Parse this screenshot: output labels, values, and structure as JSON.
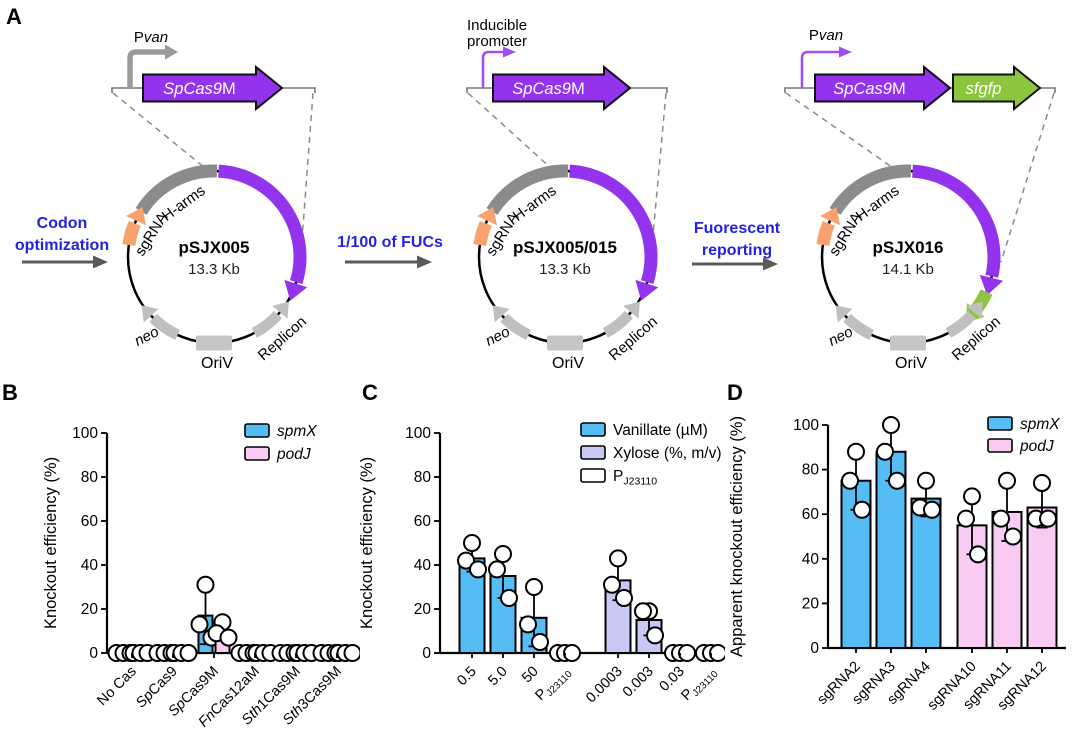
{
  "panel_labels": [
    "A",
    "B",
    "C",
    "D"
  ],
  "colors": {
    "cas_purple": "#9333EE",
    "promoter_purple": "#A44DF2",
    "gfp_green": "#8CC63E",
    "sgrna_orange": "#F8A26F",
    "harms_gray": "#8B8B8B",
    "feature_gray": "#BFBFBF",
    "promoter_gray": "#9A9A9A",
    "transition_blue": "#2222E0",
    "bar_blue": "#55BDF3",
    "bar_pink": "#F9CBF3",
    "bar_lavender": "#C9C7F3",
    "bar_white": "#FFFFFF"
  },
  "panel_a": {
    "transitions": [
      {
        "lines": [
          "Codon",
          "optimization"
        ]
      },
      {
        "lines": [
          "1/100 of FUCs"
        ]
      },
      {
        "lines": [
          "Fuorescent",
          "reporting"
        ]
      }
    ],
    "ring_labels": {
      "sgrna": "sgRNA",
      "h_arms": "H-arms",
      "neo": "neo",
      "oriv": "OriV",
      "replicon": "Replicon"
    },
    "plasmids": [
      {
        "name": "pSJX005",
        "size": "13.3 Kb",
        "promoter_lines": [
          [
            {
              "t": "P"
            },
            {
              "t": "van",
              "i": true
            }
          ]
        ],
        "promoter_style": "gray-thick",
        "genes": [
          {
            "segs": [
              {
                "t": "SpCas9",
                "i": true
              },
              {
                "t": "M"
              }
            ],
            "color": "cas_purple"
          }
        ],
        "has_gfp": false
      },
      {
        "name": "pSJX005/015",
        "size": "13.3 Kb",
        "promoter_lines": [
          [
            {
              "t": "Inducible"
            }
          ],
          [
            {
              "t": "promoter"
            }
          ]
        ],
        "promoter_style": "purple-thin",
        "genes": [
          {
            "segs": [
              {
                "t": "SpCas9",
                "i": true
              },
              {
                "t": "M"
              }
            ],
            "color": "cas_purple"
          }
        ],
        "has_gfp": false
      },
      {
        "name": "pSJX016",
        "size": "14.1 Kb",
        "promoter_lines": [
          [
            {
              "t": "P"
            },
            {
              "t": "van",
              "i": true
            }
          ]
        ],
        "promoter_style": "purple-thin",
        "genes": [
          {
            "segs": [
              {
                "t": "SpCas9",
                "i": true
              },
              {
                "t": "M"
              }
            ],
            "color": "cas_purple"
          },
          {
            "segs": [
              {
                "t": "sfgfp",
                "i": true
              }
            ],
            "color": "gfp_green"
          }
        ],
        "has_gfp": true
      }
    ]
  },
  "chart_data": [
    {
      "panel": "B",
      "type": "bar",
      "ylabel": "Knockout efficiency (%)",
      "ylim": [
        0,
        100
      ],
      "yticks": [
        0,
        20,
        40,
        60,
        80,
        100
      ],
      "legend": [
        {
          "color": "#55BDF3",
          "segs": [
            {
              "t": "spmX",
              "i": true
            }
          ]
        },
        {
          "color": "#F9CBF3",
          "segs": [
            {
              "t": "podJ",
              "i": true
            }
          ]
        }
      ],
      "groups": [
        {
          "label": [
            {
              "t": "No Cas"
            }
          ],
          "bars": [
            {
              "color": "#55BDF3",
              "value": 0,
              "points": [
                0,
                0,
                0
              ]
            },
            {
              "color": "#F9CBF3",
              "value": 0,
              "points": [
                0,
                0,
                0
              ]
            }
          ]
        },
        {
          "label": [
            {
              "t": "Sp",
              "i": true
            },
            {
              "t": "Cas9"
            }
          ],
          "bars": [
            {
              "color": "#55BDF3",
              "value": 0,
              "points": [
                0,
                0,
                0
              ]
            },
            {
              "color": "#F9CBF3",
              "value": 0,
              "points": [
                0,
                0,
                0
              ]
            }
          ]
        },
        {
          "label": [
            {
              "t": "Sp",
              "i": true
            },
            {
              "t": "Cas9M"
            }
          ],
          "bars": [
            {
              "color": "#55BDF3",
              "value": 17,
              "err_lo": 4,
              "err_hi": 31,
              "points": [
                31,
                13,
                7
              ]
            },
            {
              "color": "#F9CBF3",
              "value": 10,
              "err_lo": 6,
              "err_hi": 14,
              "points": [
                14,
                9,
                7
              ]
            }
          ]
        },
        {
          "label": [
            {
              "t": "Fn",
              "i": true
            },
            {
              "t": "Cas12aM"
            }
          ],
          "bars": [
            {
              "color": "#55BDF3",
              "value": 0,
              "points": [
                0,
                0,
                0
              ]
            },
            {
              "color": "#F9CBF3",
              "value": 0,
              "points": [
                0,
                0,
                0
              ]
            }
          ]
        },
        {
          "label": [
            {
              "t": "Sth",
              "i": true
            },
            {
              "t": "1Cas9M"
            }
          ],
          "bars": [
            {
              "color": "#55BDF3",
              "value": 0,
              "points": [
                0,
                0,
                0
              ]
            },
            {
              "color": "#F9CBF3",
              "value": 0,
              "points": [
                0,
                0,
                0
              ]
            }
          ]
        },
        {
          "label": [
            {
              "t": "Sth",
              "i": true
            },
            {
              "t": "3Cas9M"
            }
          ],
          "bars": [
            {
              "color": "#55BDF3",
              "value": 0,
              "points": [
                0,
                0,
                0
              ]
            },
            {
              "color": "#F9CBF3",
              "value": 0,
              "points": [
                0,
                0,
                0
              ]
            }
          ]
        }
      ]
    },
    {
      "panel": "C",
      "type": "bar",
      "ylabel": "Knockout efficiency (%)",
      "ylim": [
        0,
        100
      ],
      "yticks": [
        0,
        20,
        40,
        60,
        80,
        100
      ],
      "legend": [
        {
          "color": "#55BDF3",
          "segs": [
            {
              "t": "Vanillate (µM)"
            }
          ]
        },
        {
          "color": "#C9C7F3",
          "segs": [
            {
              "t": "Xylose (%, m/v)"
            }
          ]
        },
        {
          "color": "#FFFFFF",
          "segs": [
            {
              "t": "P"
            },
            {
              "t": "J23110",
              "sub": true
            }
          ]
        }
      ],
      "groups": [
        {
          "label": [
            {
              "t": "0.5"
            }
          ],
          "bars": [
            {
              "color": "#55BDF3",
              "value": 43,
              "err_lo": 37,
              "err_hi": 50,
              "points": [
                50,
                42,
                38
              ]
            }
          ]
        },
        {
          "label": [
            {
              "t": "5.0"
            }
          ],
          "bars": [
            {
              "color": "#55BDF3",
              "value": 35,
              "err_lo": 25,
              "err_hi": 45,
              "points": [
                45,
                38,
                25
              ]
            }
          ]
        },
        {
          "label": [
            {
              "t": "50"
            }
          ],
          "bars": [
            {
              "color": "#55BDF3",
              "value": 16,
              "err_lo": 3,
              "err_hi": 30,
              "points": [
                30,
                13,
                5
              ]
            }
          ]
        },
        {
          "label": [
            {
              "t": "P"
            },
            {
              "t": "J23110",
              "sub": true
            }
          ],
          "bars": [
            {
              "color": "#FFFFFF",
              "value": 0,
              "points": [
                0,
                0,
                0
              ]
            }
          ]
        },
        {
          "label": [
            {
              "t": "0.0003"
            }
          ],
          "bars": [
            {
              "color": "#C9C7F3",
              "value": 33,
              "err_lo": 24,
              "err_hi": 43,
              "points": [
                43,
                31,
                25
              ]
            }
          ]
        },
        {
          "label": [
            {
              "t": "0.003"
            }
          ],
          "bars": [
            {
              "color": "#C9C7F3",
              "value": 15,
              "err_lo": 8,
              "err_hi": 21,
              "points": [
                19,
                19,
                8
              ]
            }
          ]
        },
        {
          "label": [
            {
              "t": "0.03"
            }
          ],
          "bars": [
            {
              "color": "#FFFFFF",
              "value": 0,
              "points": [
                0,
                0,
                0
              ]
            }
          ]
        },
        {
          "label": [
            {
              "t": "P"
            },
            {
              "t": "J23110",
              "sub": true
            }
          ],
          "bars": [
            {
              "color": "#FFFFFF",
              "value": 0,
              "points": [
                0,
                0,
                0
              ]
            }
          ]
        }
      ]
    },
    {
      "panel": "D",
      "type": "bar",
      "ylabel": "Apparent knockout efficiency (%)",
      "ylim": [
        0,
        100
      ],
      "yticks": [
        0,
        20,
        40,
        60,
        80,
        100
      ],
      "legend": [
        {
          "color": "#55BDF3",
          "segs": [
            {
              "t": "spmX",
              "i": true
            }
          ]
        },
        {
          "color": "#F9CBF3",
          "segs": [
            {
              "t": "podJ",
              "i": true
            }
          ]
        }
      ],
      "groups": [
        {
          "label": [
            {
              "t": "sgRNA2"
            }
          ],
          "bars": [
            {
              "color": "#55BDF3",
              "value": 75,
              "err_lo": 62,
              "err_hi": 88,
              "points": [
                88,
                75,
                62
              ]
            }
          ]
        },
        {
          "label": [
            {
              "t": "sgRNA3"
            }
          ],
          "bars": [
            {
              "color": "#55BDF3",
              "value": 88,
              "err_lo": 75,
              "err_hi": 100,
              "points": [
                100,
                88,
                75
              ]
            }
          ]
        },
        {
          "label": [
            {
              "t": "sgRNA4"
            }
          ],
          "bars": [
            {
              "color": "#55BDF3",
              "value": 67,
              "err_lo": 59,
              "err_hi": 75,
              "points": [
                75,
                63,
                62
              ]
            }
          ]
        },
        {
          "label": [
            {
              "t": "sgRNA10"
            }
          ],
          "bars": [
            {
              "color": "#F9CBF3",
              "value": 55,
              "err_lo": 42,
              "err_hi": 68,
              "points": [
                68,
                58,
                42
              ]
            }
          ]
        },
        {
          "label": [
            {
              "t": "sgRNA11"
            }
          ],
          "bars": [
            {
              "color": "#F9CBF3",
              "value": 61,
              "err_lo": 48,
              "err_hi": 75,
              "points": [
                75,
                58,
                50
              ]
            }
          ]
        },
        {
          "label": [
            {
              "t": "sgRNA12"
            }
          ],
          "bars": [
            {
              "color": "#F9CBF3",
              "value": 63,
              "err_lo": 54,
              "err_hi": 74,
              "points": [
                74,
                58,
                58
              ]
            }
          ]
        }
      ]
    }
  ]
}
